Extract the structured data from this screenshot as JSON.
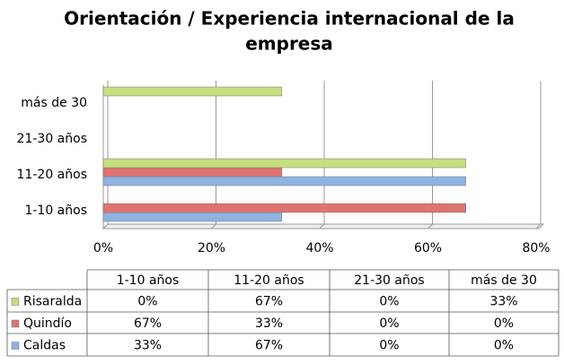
{
  "chart_data": {
    "type": "bar",
    "orientation": "horizontal",
    "title": "Orientación / Experiencia internacional de la empresa",
    "categories": [
      "1-10 años",
      "11-20 años",
      "21-30 años",
      "más de 30"
    ],
    "series": [
      {
        "name": "Caldas",
        "color": "#8db3e2",
        "values": [
          33,
          67,
          0,
          0
        ],
        "value_labels": [
          "33%",
          "67%",
          "0%",
          "0%"
        ]
      },
      {
        "name": "Quindío",
        "color": "#e07272",
        "values": [
          67,
          33,
          0,
          0
        ],
        "value_labels": [
          "67%",
          "33%",
          "0%",
          "0%"
        ]
      },
      {
        "name": "Risaralda",
        "color": "#c4df7e",
        "values": [
          0,
          67,
          0,
          33
        ],
        "value_labels": [
          "0%",
          "67%",
          "0%",
          "33%"
        ]
      }
    ],
    "xlim": [
      0,
      80
    ],
    "xticks": [
      {
        "value": 0,
        "label": "0%"
      },
      {
        "value": 20,
        "label": "20%"
      },
      {
        "value": 40,
        "label": "40%"
      },
      {
        "value": 60,
        "label": "60%"
      },
      {
        "value": 80,
        "label": "80%"
      }
    ],
    "grid": true
  }
}
